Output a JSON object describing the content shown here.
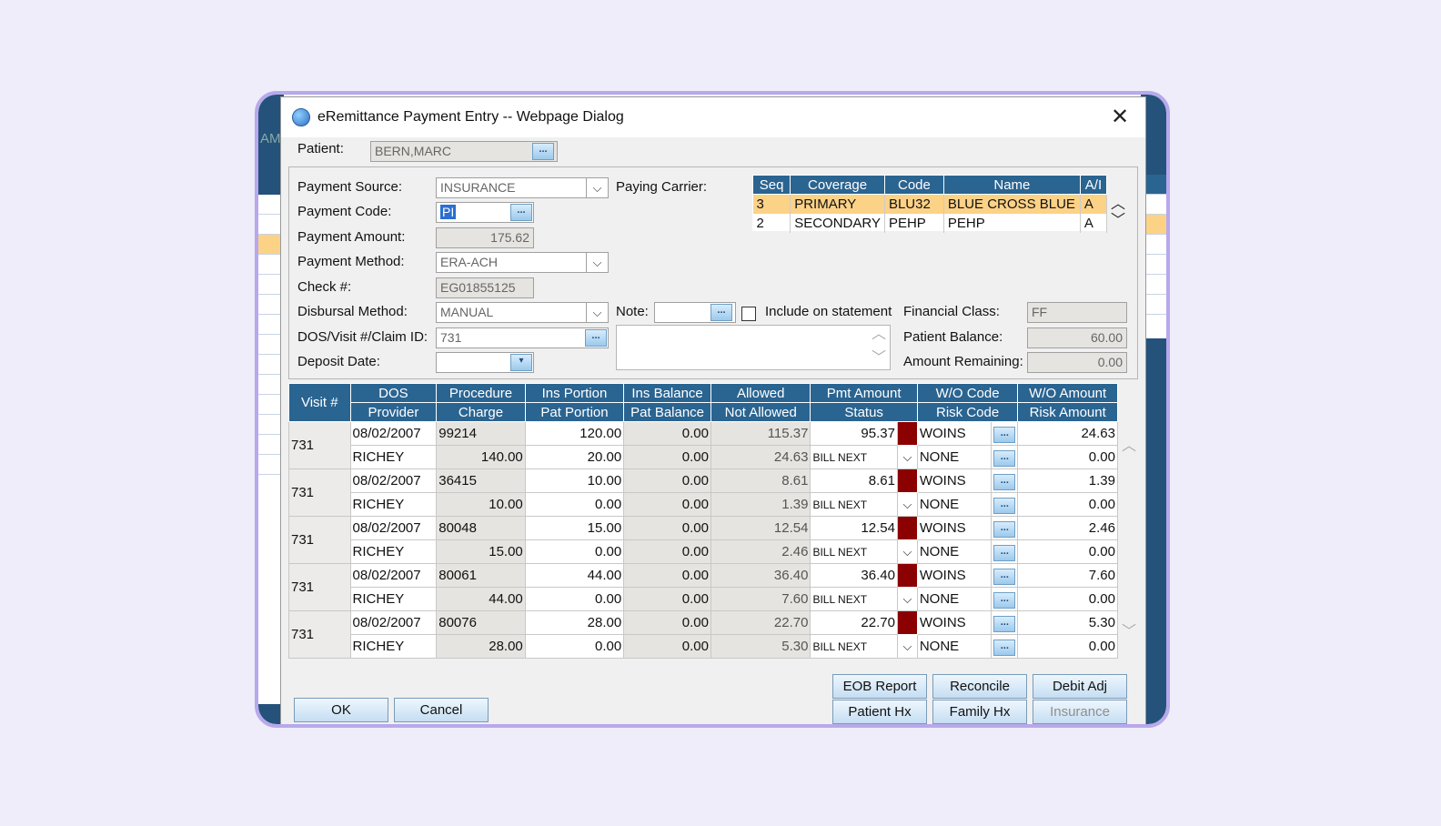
{
  "background": {
    "left_text": "AMA"
  },
  "window": {
    "title": "eRemittance Payment Entry -- Webpage Dialog",
    "close_label": "✕"
  },
  "patient": {
    "label": "Patient:",
    "value": "BERN,MARC"
  },
  "form": {
    "payment_source_label": "Payment Source:",
    "payment_source_value": "INSURANCE",
    "payment_code_label": "Payment Code:",
    "payment_code_value": "PI",
    "payment_amount_label": "Payment Amount:",
    "payment_amount_value": "175.62",
    "payment_method_label": "Payment Method:",
    "payment_method_value": "ERA-ACH",
    "check_label": "Check #:",
    "check_value": "EG01855125",
    "disbursal_label": "Disbursal Method:",
    "disbursal_value": "MANUAL",
    "dos_label": "DOS/Visit #/Claim ID:",
    "dos_value": "731",
    "deposit_label": "Deposit Date:",
    "deposit_value": "",
    "paying_carrier_label": "Paying Carrier:",
    "note_label": "Note:",
    "note_value": "",
    "include_label": "Include on statement",
    "financial_class_label": "Financial Class:",
    "financial_class_value": "FF",
    "patient_balance_label": "Patient Balance:",
    "patient_balance_value": "60.00",
    "amount_remaining_label": "Amount Remaining:",
    "amount_remaining_value": "0.00",
    "dots_label": "..."
  },
  "carrier": {
    "headers": [
      "Seq",
      "Coverage",
      "Code",
      "Name",
      "A/I"
    ],
    "rows": [
      {
        "seq": "3",
        "coverage": "PRIMARY",
        "code": "BLU32",
        "name": "BLUE CROSS BLUE S",
        "ai": "A"
      },
      {
        "seq": "2",
        "coverage": "SECONDARY",
        "code": "PEHP",
        "name": "PEHP",
        "ai": "A"
      }
    ]
  },
  "grid": {
    "visit_header": "Visit #",
    "top_headers": [
      "DOS",
      "Procedure",
      "Ins Portion",
      "Ins Balance",
      "Allowed",
      "Pmt Amount",
      "W/O Code",
      "W/O Amount"
    ],
    "bottom_headers": [
      "Provider",
      "Charge",
      "Pat Portion",
      "Pat Balance",
      "Not Allowed",
      "Status",
      "Risk Code",
      "Risk Amount"
    ],
    "rows": [
      {
        "visit": "731",
        "dos": "08/02/2007",
        "procedure": "99214",
        "ins_portion": "120.00",
        "ins_balance": "0.00",
        "allowed": "115.37",
        "pmt_amount": "95.37",
        "wo_code": "WOINS",
        "wo_amount": "24.63",
        "provider": "RICHEY",
        "charge": "140.00",
        "pat_portion": "20.00",
        "pat_balance": "0.00",
        "not_allowed": "24.63",
        "status": "BILL NEXT",
        "risk_code": "NONE",
        "risk_amount": "0.00"
      },
      {
        "visit": "731",
        "dos": "08/02/2007",
        "procedure": "36415",
        "ins_portion": "10.00",
        "ins_balance": "0.00",
        "allowed": "8.61",
        "pmt_amount": "8.61",
        "wo_code": "WOINS",
        "wo_amount": "1.39",
        "provider": "RICHEY",
        "charge": "10.00",
        "pat_portion": "0.00",
        "pat_balance": "0.00",
        "not_allowed": "1.39",
        "status": "BILL NEXT",
        "risk_code": "NONE",
        "risk_amount": "0.00"
      },
      {
        "visit": "731",
        "dos": "08/02/2007",
        "procedure": "80048",
        "ins_portion": "15.00",
        "ins_balance": "0.00",
        "allowed": "12.54",
        "pmt_amount": "12.54",
        "wo_code": "WOINS",
        "wo_amount": "2.46",
        "provider": "RICHEY",
        "charge": "15.00",
        "pat_portion": "0.00",
        "pat_balance": "0.00",
        "not_allowed": "2.46",
        "status": "BILL NEXT",
        "risk_code": "NONE",
        "risk_amount": "0.00"
      },
      {
        "visit": "731",
        "dos": "08/02/2007",
        "procedure": "80061",
        "ins_portion": "44.00",
        "ins_balance": "0.00",
        "allowed": "36.40",
        "pmt_amount": "36.40",
        "wo_code": "WOINS",
        "wo_amount": "7.60",
        "provider": "RICHEY",
        "charge": "44.00",
        "pat_portion": "0.00",
        "pat_balance": "0.00",
        "not_allowed": "7.60",
        "status": "BILL NEXT",
        "risk_code": "NONE",
        "risk_amount": "0.00"
      },
      {
        "visit": "731",
        "dos": "08/02/2007",
        "procedure": "80076",
        "ins_portion": "28.00",
        "ins_balance": "0.00",
        "allowed": "22.70",
        "pmt_amount": "22.70",
        "wo_code": "WOINS",
        "wo_amount": "5.30",
        "provider": "RICHEY",
        "charge": "28.00",
        "pat_portion": "0.00",
        "pat_balance": "0.00",
        "not_allowed": "5.30",
        "status": "BILL NEXT",
        "risk_code": "NONE",
        "risk_amount": "0.00"
      }
    ]
  },
  "buttons": {
    "ok": "OK",
    "cancel": "Cancel",
    "eob_report": "EOB Report",
    "reconcile": "Reconcile",
    "debit_adj": "Debit Adj",
    "patient_hx": "Patient Hx",
    "family_hx": "Family Hx",
    "insurance": "Insurance"
  },
  "colors": {
    "header_blue": "#2a6491",
    "selected_row": "#fcd287",
    "status_swatch": "#8b0000",
    "frame_border": "#b8a8ec"
  },
  "icons": {
    "title": "browser-globe-icon",
    "close": "close-icon",
    "dropdown": "chevron-down-icon",
    "lookup": "ellipsis-lookup-icon",
    "scroll_up": "chevron-up-icon",
    "scroll_down": "chevron-down-icon"
  }
}
